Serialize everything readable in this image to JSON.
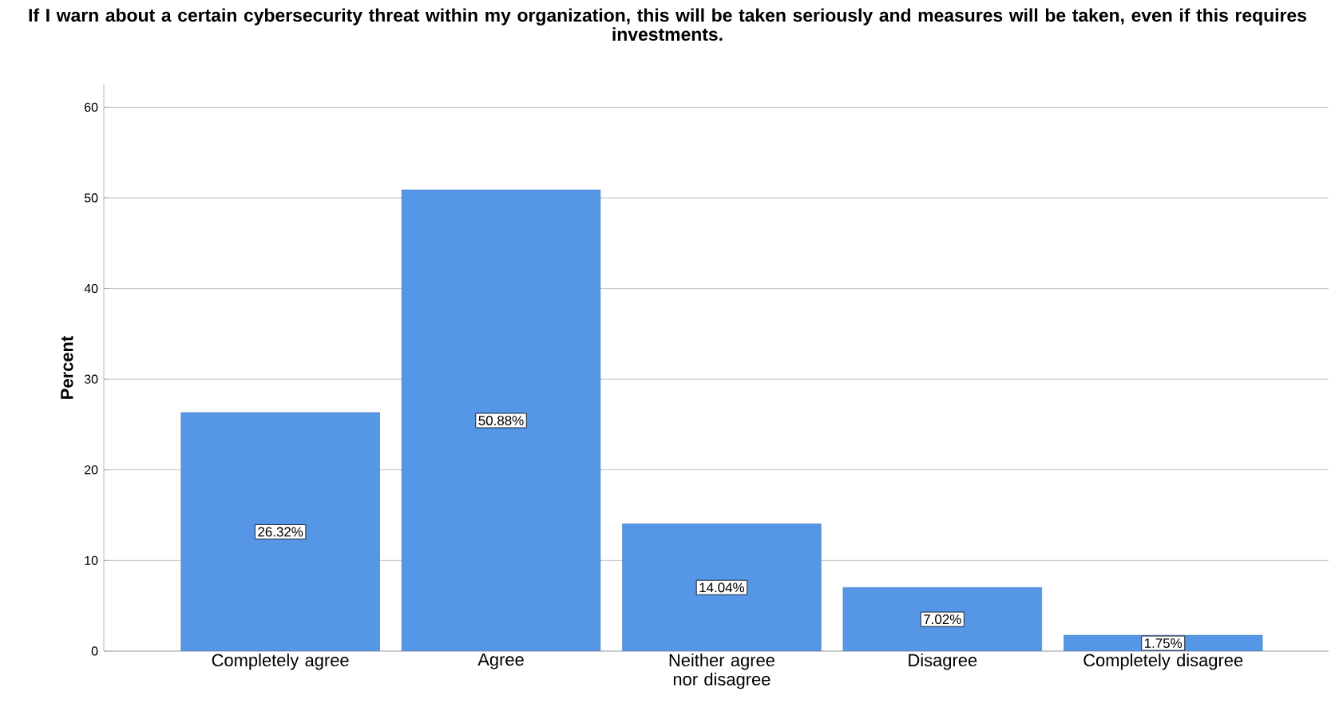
{
  "chart_data": {
    "type": "bar",
    "title": "If I warn about a certain cybersecurity threat within my organization, this will be taken seriously and measures will be taken, even if this requires investments.",
    "ylabel": "Percent",
    "categories": [
      "Completely agree",
      "Agree",
      "Neither agree nor disagree",
      "Disagree",
      "Completely disagree"
    ],
    "values": [
      26.32,
      50.88,
      14.04,
      7.02,
      1.75
    ],
    "value_labels": [
      "26.32%",
      "50.88%",
      "14.04%",
      "7.02%",
      "1.75%"
    ],
    "color": "#5596e6",
    "ylim": [
      0,
      62.5
    ],
    "yticks": [
      0,
      10,
      20,
      30,
      40,
      50,
      60
    ],
    "grid": "y"
  }
}
